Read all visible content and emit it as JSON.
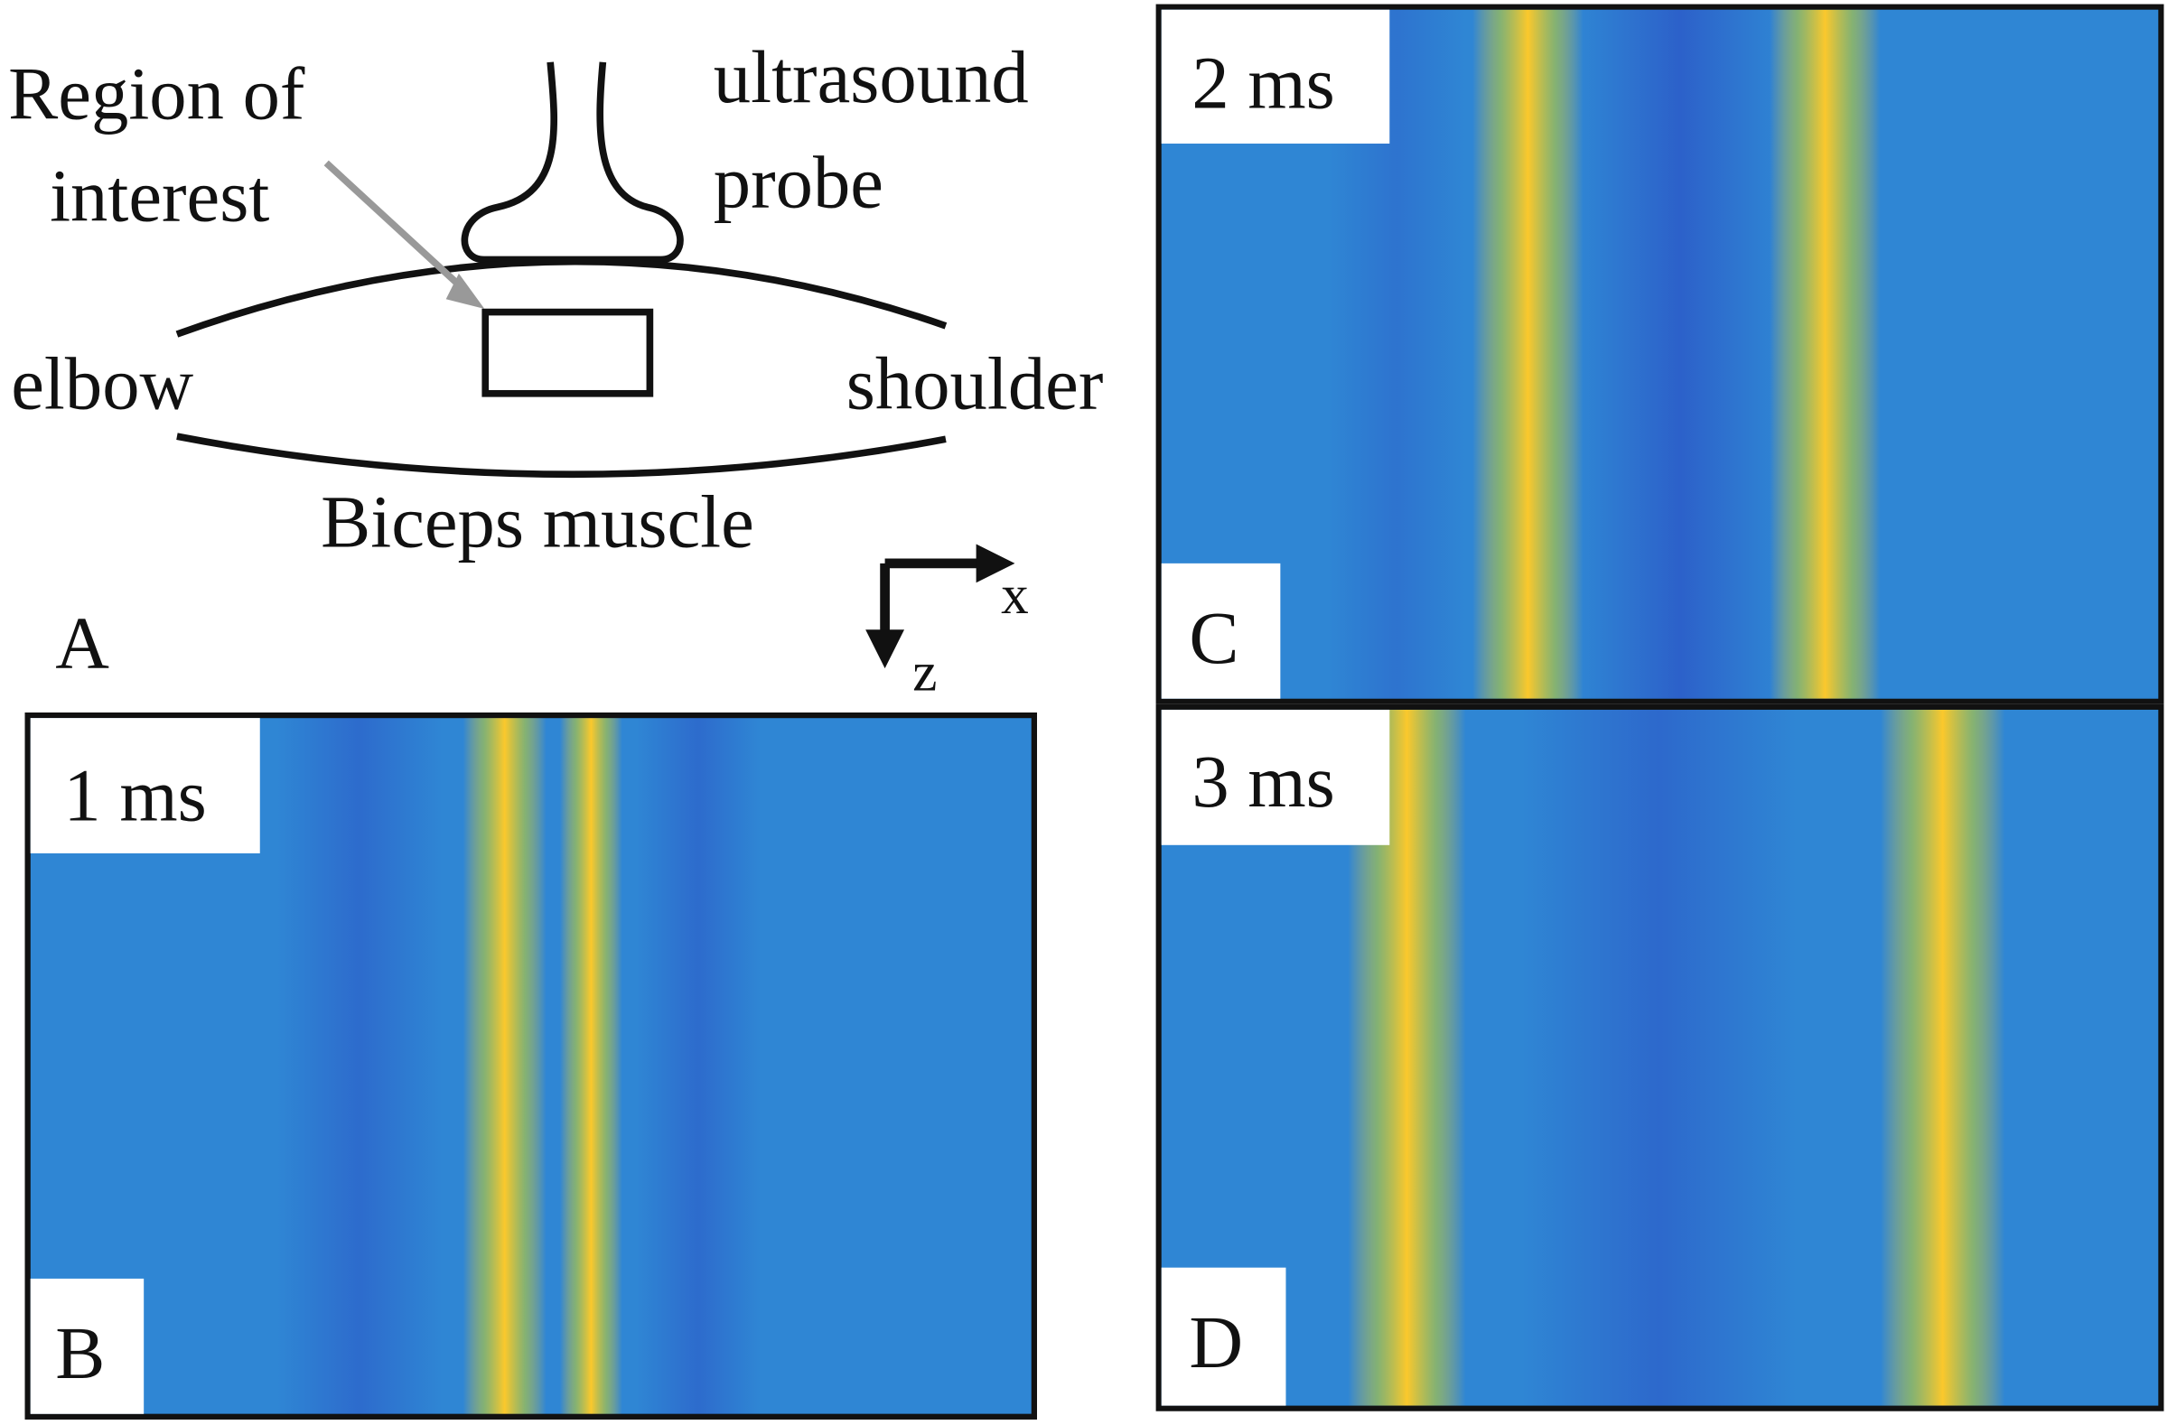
{
  "diagram": {
    "panel_label": "A",
    "region": [
      "Region of",
      "interest"
    ],
    "probe": [
      "ultrasound",
      "probe"
    ],
    "left": "elbow",
    "right": "shoulder",
    "muscle": "Biceps muscle",
    "axis_x": "x",
    "axis_z": "z"
  },
  "panels": [
    {
      "label": "B",
      "time": "1 ms"
    },
    {
      "label": "C",
      "time": "2 ms"
    },
    {
      "label": "D",
      "time": "3 ms"
    }
  ]
}
